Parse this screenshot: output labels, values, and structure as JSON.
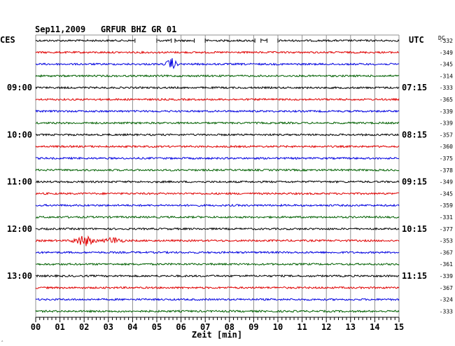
{
  "chart_data": {
    "type": "line",
    "title": "Sep11,2009   GRFUR BHZ GR 01",
    "left_timezone": "CES",
    "right_timezone": "UTC",
    "dc_label": "DC",
    "xlabel": "Zeit [min]",
    "xlim": [
      0,
      15
    ],
    "x_ticks": [
      "00",
      "01",
      "02",
      "03",
      "04",
      "05",
      "06",
      "07",
      "08",
      "09",
      "10",
      "11",
      "12",
      "13",
      "14",
      "15"
    ],
    "left_hour_labels": [
      {
        "row": 4,
        "label": "09:00"
      },
      {
        "row": 8,
        "label": "10:00"
      },
      {
        "row": 12,
        "label": "11:00"
      },
      {
        "row": 16,
        "label": "12:00"
      },
      {
        "row": 20,
        "label": "13:00"
      }
    ],
    "right_hour_labels": [
      {
        "row": 4,
        "label": "07:15"
      },
      {
        "row": 8,
        "label": "08:15"
      },
      {
        "row": 12,
        "label": "09:15"
      },
      {
        "row": 16,
        "label": "10:15"
      },
      {
        "row": 20,
        "label": "11:15"
      }
    ],
    "row_colors": [
      "#000000",
      "#e00000",
      "#0000e0",
      "#006000"
    ],
    "dc_offsets": [
      -332,
      -349,
      -345,
      -314,
      -333,
      -365,
      -339,
      -339,
      -357,
      -360,
      -375,
      -378,
      -349,
      -345,
      -359,
      -331,
      -377,
      -353,
      -367,
      -361,
      -339,
      -367,
      -324,
      -333
    ],
    "gaps": [
      {
        "row": 0,
        "from": 4.1,
        "to": 5.0
      },
      {
        "row": 0,
        "from": 5.6,
        "to": 5.75
      },
      {
        "row": 0,
        "from": 6.55,
        "to": 7.0
      },
      {
        "row": 0,
        "from": 9.05,
        "to": 9.3
      },
      {
        "row": 0,
        "from": 9.55,
        "to": 10.0
      }
    ],
    "events": [
      {
        "row": 2,
        "center": 5.6,
        "width": 0.7,
        "amplitude": 9
      },
      {
        "row": 17,
        "center": 2.0,
        "width": 1.4,
        "amplitude": 8
      },
      {
        "row": 17,
        "center": 3.2,
        "width": 1.2,
        "amplitude": 5
      }
    ]
  }
}
